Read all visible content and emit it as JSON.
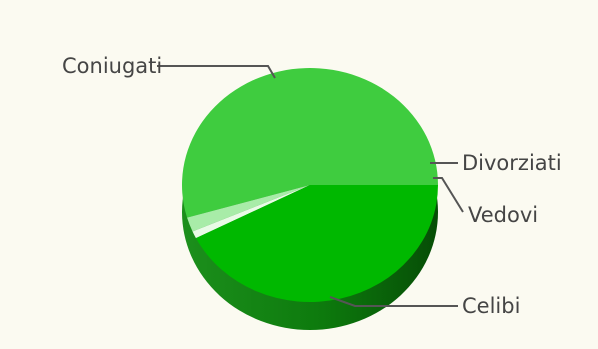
{
  "chart_data": {
    "type": "pie",
    "title": "",
    "slices": [
      {
        "label": "Coniugati",
        "value": 54.5,
        "color": "#3fcc3f"
      },
      {
        "label": "Divorziati",
        "value": 2.0,
        "color": "#a8eca8"
      },
      {
        "label": "Vedovi",
        "value": 1.0,
        "color": "#e9fbe6"
      },
      {
        "label": "Celibi",
        "value": 42.5,
        "color": "#00b800"
      }
    ],
    "legend": "none",
    "style": "3d"
  }
}
